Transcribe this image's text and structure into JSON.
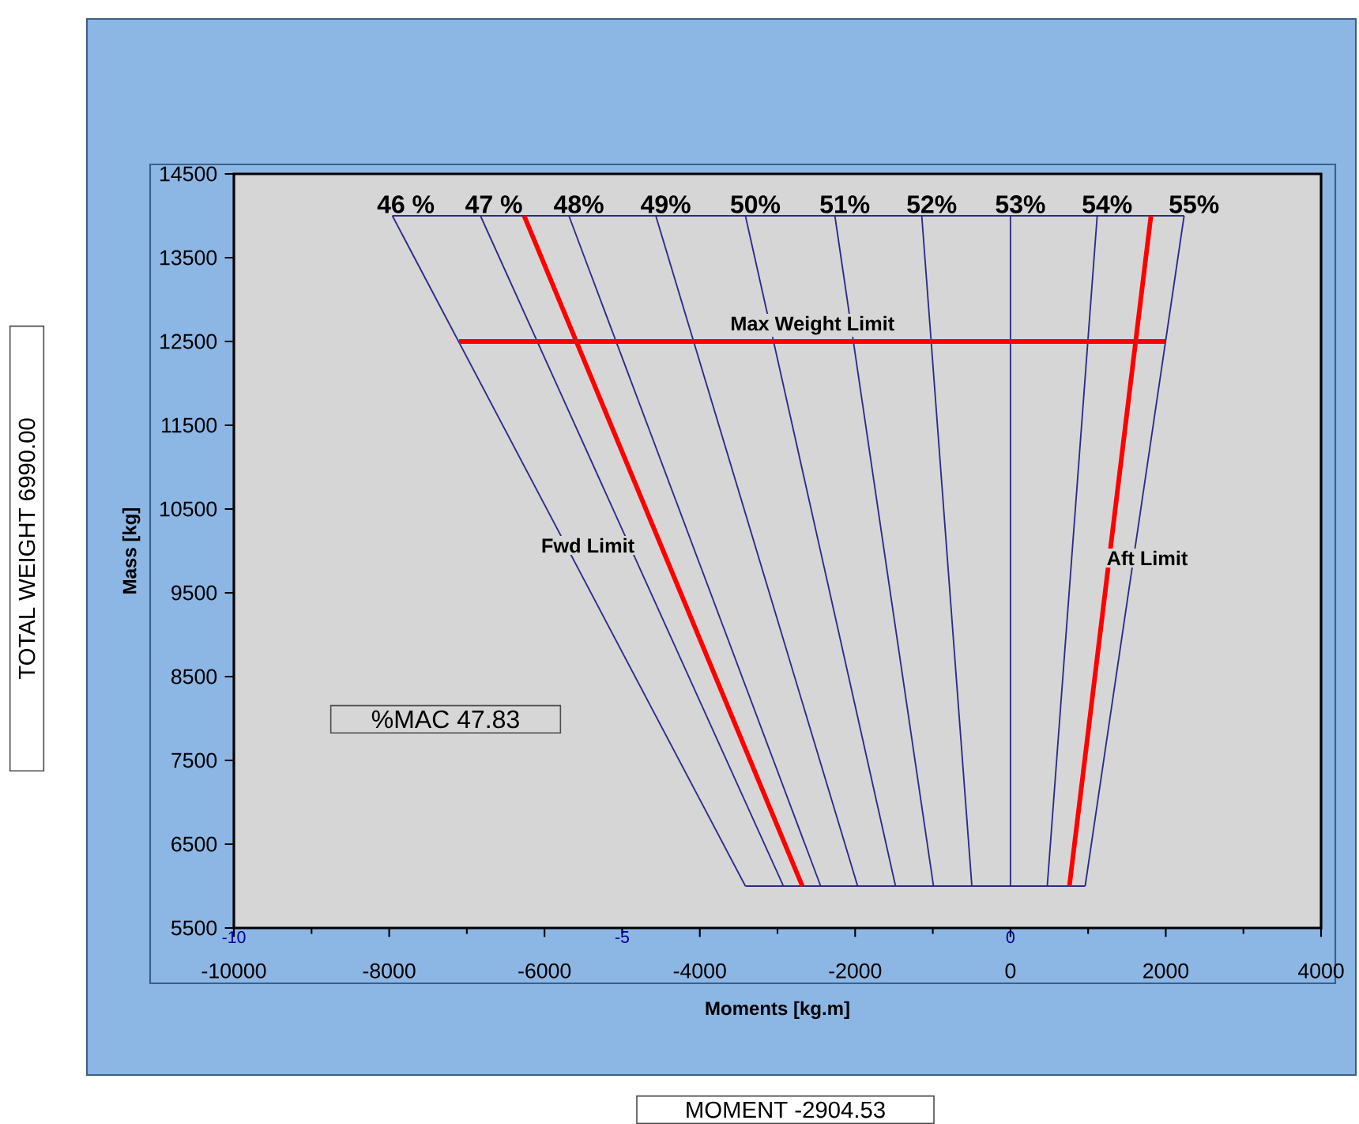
{
  "chart_data": {
    "type": "line",
    "xlabel": "Moments [kg.m]",
    "ylabel": "Mass [kg]",
    "xlim": [
      -10000,
      4000
    ],
    "xticks": [
      -10000,
      -8000,
      -6000,
      -4000,
      -2000,
      0,
      2000,
      4000
    ],
    "ylim": [
      5500,
      14500
    ],
    "yticks": [
      5500,
      6500,
      7500,
      8500,
      9500,
      10500,
      11500,
      12500,
      13500,
      14500
    ],
    "x2lim": [
      -10,
      4
    ],
    "x2ticks": [
      -10,
      -5,
      0
    ],
    "marker": "none",
    "series": [
      {
        "name": "46 %",
        "color": "#2b2b8c",
        "x": [
          -3413,
          -7959
        ],
        "values": [
          6000,
          14000
        ]
      },
      {
        "name": "47 %",
        "color": "#2b2b8c",
        "x": [
          -2924,
          -6825
        ],
        "values": [
          6000,
          14000
        ]
      },
      {
        "name": "48%",
        "color": "#2b2b8c",
        "x": [
          -2444,
          -5686
        ],
        "values": [
          6000,
          14000
        ]
      },
      {
        "name": "49%",
        "color": "#2b2b8c",
        "x": [
          -1968,
          -4567
        ],
        "values": [
          6000,
          14000
        ]
      },
      {
        "name": "50%",
        "color": "#2b2b8c",
        "x": [
          -1480,
          -3413
        ],
        "values": [
          6000,
          14000
        ]
      },
      {
        "name": "51%",
        "color": "#2b2b8c",
        "x": [
          -991,
          -2261
        ],
        "values": [
          6000,
          14000
        ]
      },
      {
        "name": "52%",
        "color": "#2b2b8c",
        "x": [
          -497,
          -1142
        ],
        "values": [
          6000,
          14000
        ]
      },
      {
        "name": "53%",
        "color": "#2b2b8c",
        "x": [
          0,
          0
        ],
        "values": [
          6000,
          14000
        ]
      },
      {
        "name": "54%",
        "color": "#2b2b8c",
        "x": [
          474,
          1117
        ],
        "values": [
          6000,
          14000
        ]
      },
      {
        "name": "55%",
        "color": "#2b2b8c",
        "x": [
          962,
          2236
        ],
        "values": [
          6000,
          14000
        ]
      },
      {
        "color": "#2b2b8c",
        "x": [
          -7959,
          2236
        ],
        "values": [
          14000,
          14000
        ]
      },
      {
        "color": "#2b2b8c",
        "x": [
          -3413,
          962
        ],
        "values": [
          6000,
          6000
        ]
      },
      {
        "name": "Max Weight Limit",
        "color": "#ff0000",
        "x": [
          -7100,
          2000
        ],
        "values": [
          12500,
          12500
        ]
      },
      {
        "color": "#ff0000",
        "x": [
          -2680,
          -6262
        ],
        "values": [
          6000,
          14000
        ]
      },
      {
        "color": "#ff0000",
        "x": [
          759,
          1809
        ],
        "values": [
          6000,
          14000
        ]
      }
    ],
    "annotations": [
      "Fwd Limit",
      "Aft Limit",
      "%MAC 47.83",
      "TOTAL WEIGHT 6990.00",
      "MOMENT -2904.53"
    ]
  }
}
